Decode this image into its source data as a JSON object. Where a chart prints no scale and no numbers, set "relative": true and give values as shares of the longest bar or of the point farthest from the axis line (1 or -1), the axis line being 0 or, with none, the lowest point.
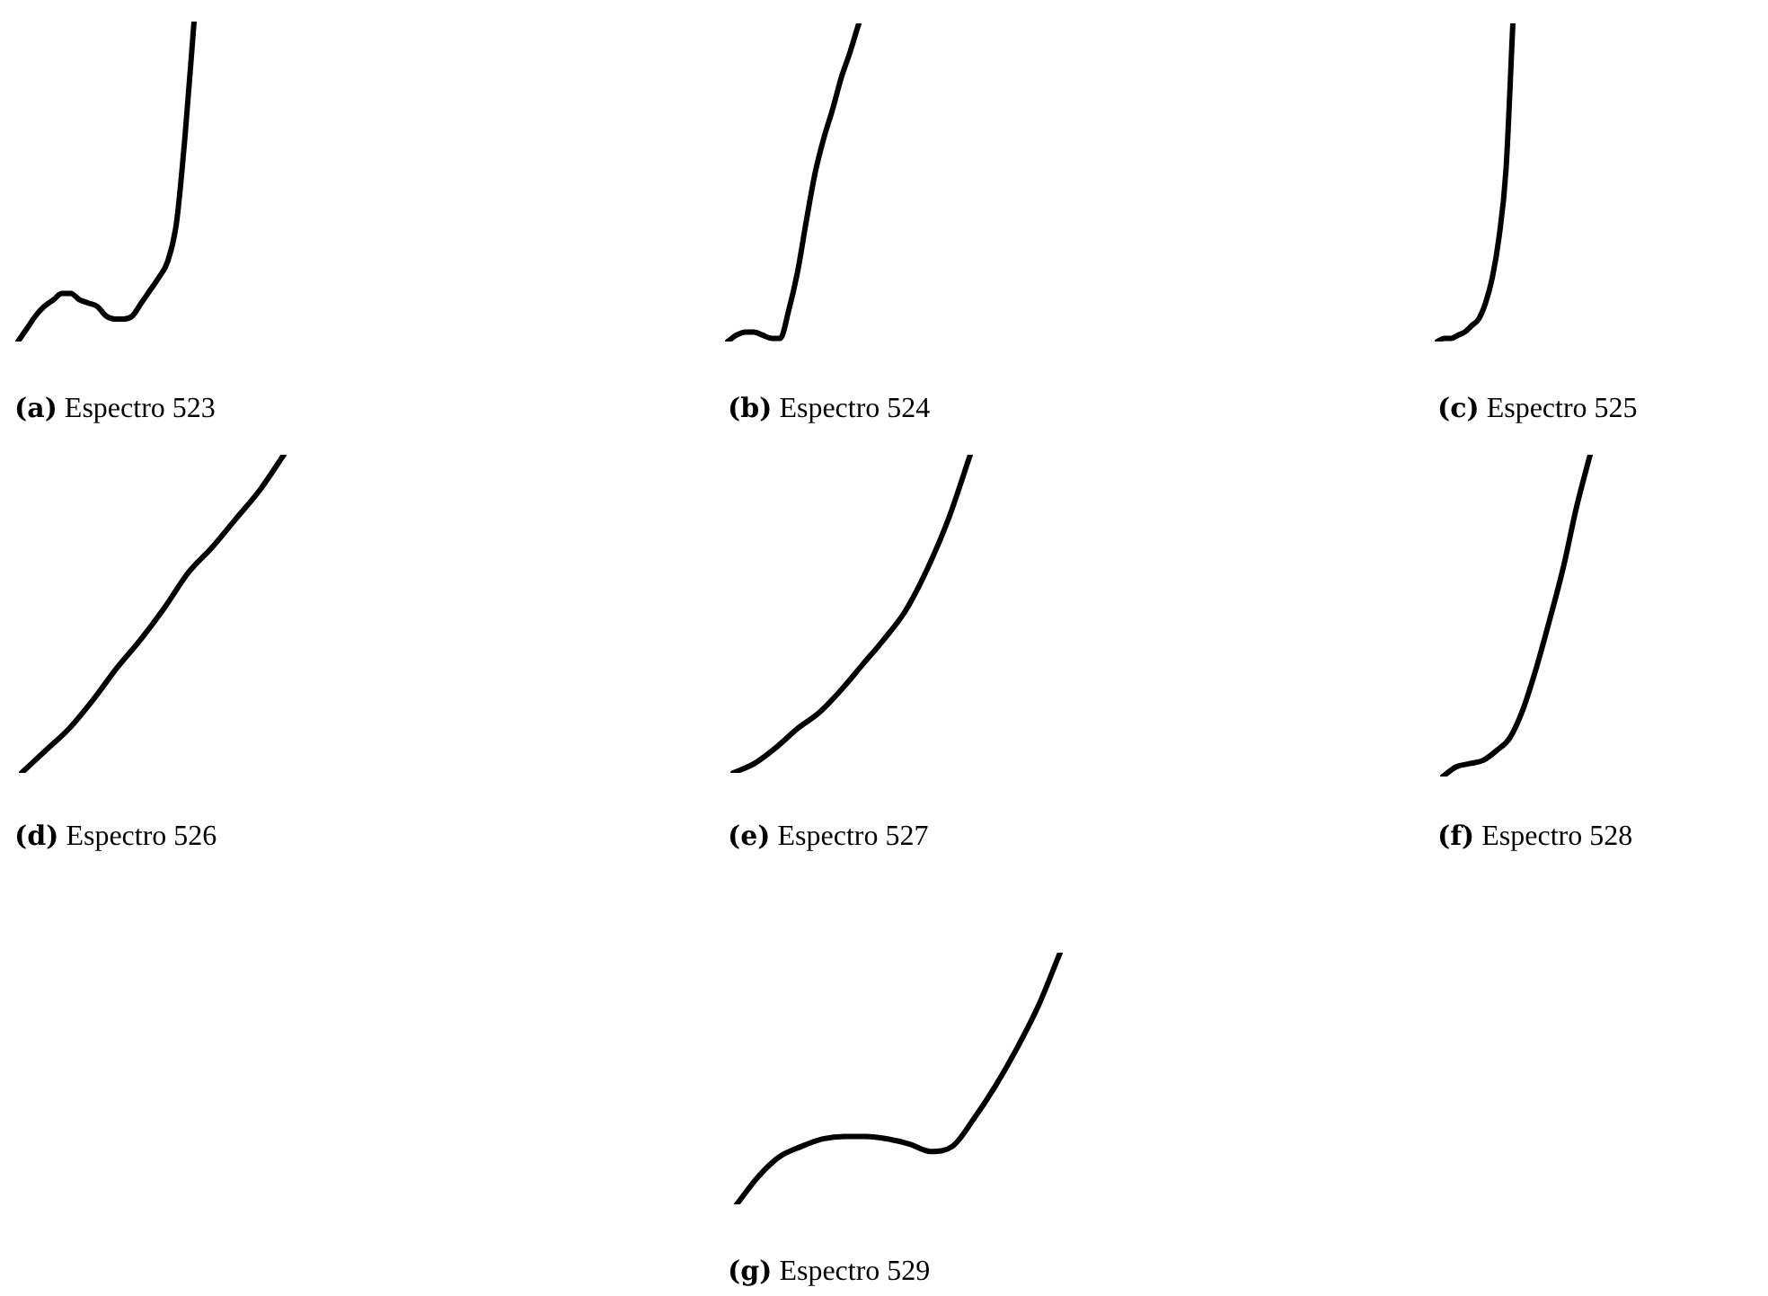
{
  "chart_data": [
    {
      "type": "line",
      "title": "(a) Espectro 523",
      "relative": true,
      "legend": false,
      "categories": [
        null,
        null,
        null,
        null,
        null,
        null,
        null,
        null,
        null,
        null,
        null,
        null,
        null,
        null,
        null,
        null,
        null,
        null,
        null,
        null,
        null
      ],
      "series": [
        {
          "color": "#000000",
          "values": [
            0,
            0.04,
            0.08,
            0.11,
            0.13,
            0.15,
            0.15,
            0.13,
            0.12,
            0.11,
            0.08,
            0.07,
            0.07,
            0.08,
            0.12,
            0.16,
            0.2,
            0.25,
            0.37,
            0.65,
            1
          ]
        }
      ]
    },
    {
      "type": "line",
      "title": "(b) Espectro 524",
      "relative": true,
      "legend": false,
      "categories": [
        null,
        null,
        null,
        null,
        null,
        null,
        null,
        null,
        null,
        null,
        null,
        null,
        null,
        null,
        null,
        null
      ],
      "series": [
        {
          "color": "#000000",
          "values": [
            0,
            0.02,
            0.03,
            0.03,
            0.02,
            0.01,
            0.01,
            0.1,
            0.22,
            0.38,
            0.53,
            0.64,
            0.73,
            0.83,
            0.91,
            1
          ]
        }
      ]
    },
    {
      "type": "line",
      "title": "(c) Espectro 525",
      "relative": true,
      "legend": false,
      "categories": [
        null,
        null,
        null,
        null,
        null,
        null,
        null,
        null,
        null,
        null,
        null,
        null
      ],
      "series": [
        {
          "color": "#000000",
          "values": [
            0,
            0.01,
            0.01,
            0.02,
            0.03,
            0.05,
            0.07,
            0.12,
            0.2,
            0.33,
            0.54,
            1
          ]
        }
      ]
    },
    {
      "type": "line",
      "title": "(d) Espectro 526",
      "relative": true,
      "legend": false,
      "categories": [
        null,
        null,
        null,
        null,
        null,
        null,
        null,
        null,
        null,
        null,
        null,
        null
      ],
      "series": [
        {
          "color": "#000000",
          "values": [
            0,
            0.07,
            0.14,
            0.23,
            0.33,
            0.42,
            0.52,
            0.63,
            0.71,
            0.8,
            0.89,
            1
          ]
        }
      ]
    },
    {
      "type": "line",
      "title": "(e) Espectro 527",
      "relative": true,
      "legend": false,
      "categories": [
        null,
        null,
        null,
        null,
        null,
        null,
        null,
        null,
        null,
        null,
        null,
        null
      ],
      "series": [
        {
          "color": "#000000",
          "values": [
            0,
            0.03,
            0.08,
            0.14,
            0.19,
            0.26,
            0.34,
            0.42,
            0.51,
            0.64,
            0.8,
            1
          ]
        }
      ]
    },
    {
      "type": "line",
      "title": "(f) Espectro 528",
      "relative": true,
      "legend": false,
      "categories": [
        null,
        null,
        null,
        null,
        null,
        null,
        null,
        null,
        null,
        null,
        null,
        null
      ],
      "series": [
        {
          "color": "#000000",
          "values": [
            0,
            0.03,
            0.04,
            0.05,
            0.08,
            0.12,
            0.21,
            0.34,
            0.49,
            0.65,
            0.84,
            1
          ]
        }
      ]
    },
    {
      "type": "line",
      "title": "(g) Espectro 529",
      "relative": true,
      "legend": false,
      "categories": [
        null,
        null,
        null,
        null,
        null,
        null,
        null,
        null,
        null,
        null,
        null,
        null,
        null,
        null,
        null,
        null
      ],
      "series": [
        {
          "color": "#000000",
          "values": [
            0,
            0.11,
            0.19,
            0.23,
            0.26,
            0.27,
            0.27,
            0.26,
            0.24,
            0.21,
            0.23,
            0.34,
            0.47,
            0.62,
            0.79,
            1
          ]
        }
      ]
    }
  ]
}
